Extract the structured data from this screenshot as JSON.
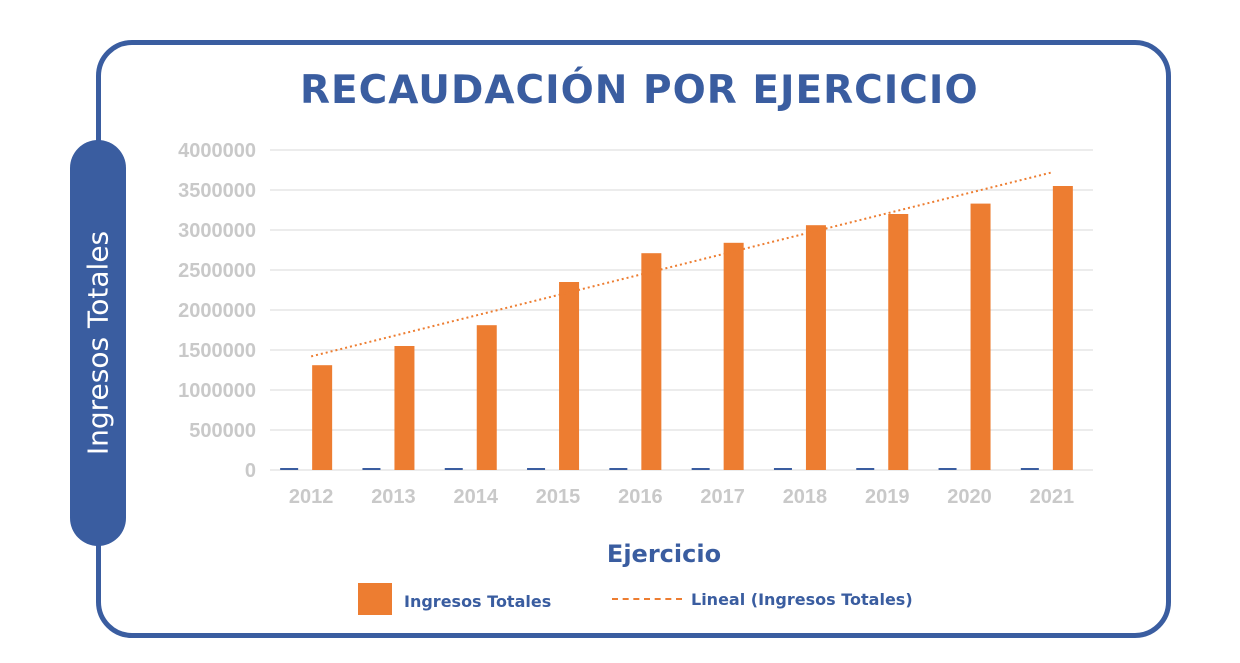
{
  "chart_data": {
    "type": "bar",
    "title": "RECAUDACIÓN POR EJERCICIO",
    "xlabel": "Ejercicio",
    "ylabel": "Ingresos Totales",
    "ylim": [
      0,
      4000000
    ],
    "yticks": [
      "0",
      "500000",
      "1000000",
      "1500000",
      "2000000",
      "2500000",
      "3000000",
      "3500000",
      "4000000"
    ],
    "categories": [
      "2012",
      "2013",
      "2014",
      "2015",
      "2016",
      "2017",
      "2018",
      "2019",
      "2020",
      "2021"
    ],
    "series": [
      {
        "name": "Ingresos Totales",
        "color": "#ed7d31",
        "values": [
          1310000,
          1550000,
          1810000,
          2350000,
          2710000,
          2840000,
          3060000,
          3200000,
          3330000,
          3550000
        ]
      }
    ],
    "trendline": {
      "name": "Lineal (Ingresos Totales)",
      "type": "linear",
      "color": "#ed7d31",
      "start": 1420000,
      "end": 3720000
    },
    "grid": true,
    "legend_position": "bottom"
  },
  "colors": {
    "accent": "#3a5da0",
    "bar": "#ed7d31",
    "tick": "#c9c9c9",
    "grid": "#d9d9d9"
  }
}
